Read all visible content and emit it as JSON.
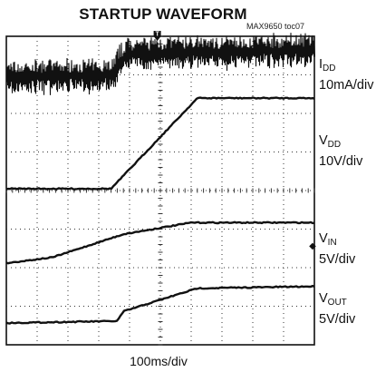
{
  "title": "STARTUP WAVEFORM",
  "figure_id": "MAX9650 toc07",
  "colors": {
    "trace": "#111111",
    "grid": "#333333",
    "background": "#ffffff"
  },
  "trigger_marker": "T",
  "channel_marker": "◆",
  "chart_data": {
    "type": "line",
    "title": "STARTUP WAVEFORM",
    "xlabel": "100ms/div",
    "grid": true,
    "divisions": {
      "x": 10,
      "y": 8
    },
    "trigger_division": 4.9,
    "series": [
      {
        "name": "I_DD",
        "name_main": "I",
        "name_sub": "DD",
        "scale": "10mA/div",
        "noisy": true,
        "x": [
          0,
          3.4,
          3.9,
          10
        ],
        "y": [
          0.4,
          0.45,
          1.0,
          1.1
        ]
      },
      {
        "name": "V_DD",
        "name_main": "V",
        "name_sub": "DD",
        "scale": "10V/div",
        "x": [
          0,
          3.4,
          6.2,
          10
        ],
        "y": [
          0,
          0,
          2.35,
          2.35
        ]
      },
      {
        "name": "V_IN",
        "name_main": "V",
        "name_sub": "IN",
        "scale": "5V/div",
        "x": [
          0,
          1.5,
          3.8,
          6.0,
          10
        ],
        "y": [
          0,
          0.15,
          0.75,
          1.05,
          1.05
        ]
      },
      {
        "name": "V_OUT",
        "name_main": "V",
        "name_sub": "OUT",
        "scale": "5V/div",
        "x": [
          0,
          3.6,
          3.8,
          5.8,
          6.2,
          10
        ],
        "y": [
          0,
          0.05,
          0.3,
          0.8,
          0.9,
          0.95
        ]
      }
    ]
  }
}
